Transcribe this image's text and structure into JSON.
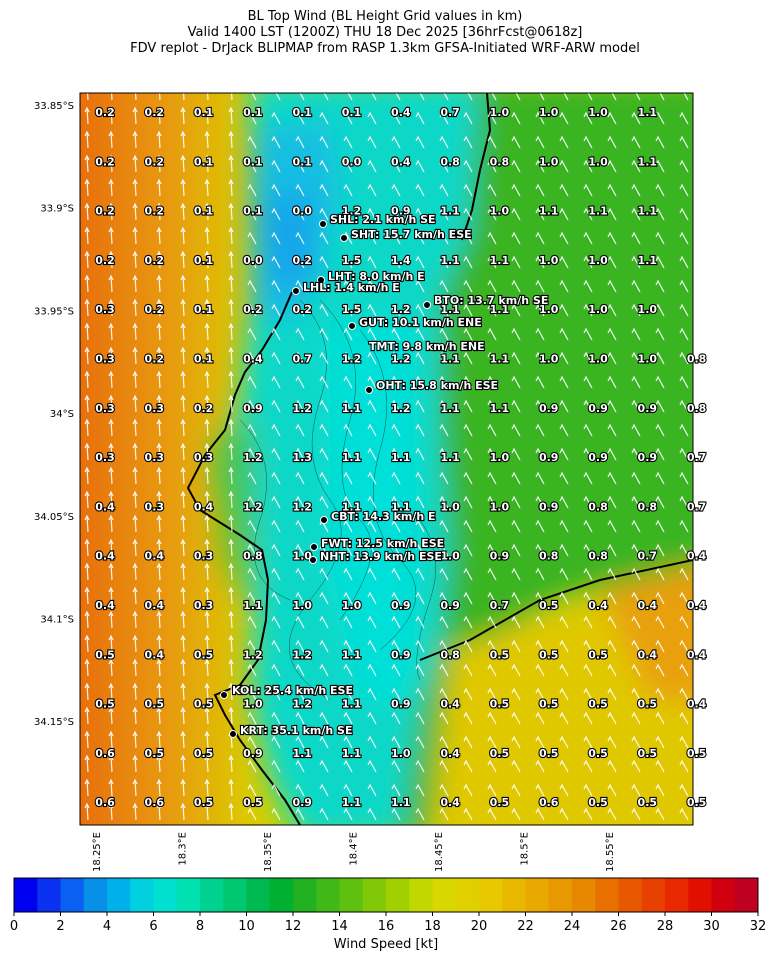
{
  "header": {
    "title_lines": [
      "BL Top Wind (BL Height Grid values in km)",
      "Valid 1400 LST (1200Z) THU 18 Dec 2025 [36hrFcst@0618z]",
      "FDV replot - DrJack BLIPMAP from RASP 1.3km GFSA-Initiated WRF-ARW model"
    ]
  },
  "map": {
    "lat_labels": [
      "33.85°S",
      "33.9°S",
      "33.95°S",
      "34°S",
      "34.05°S",
      "34.1°S",
      "34.15°S"
    ],
    "lon_labels": [
      "18.25°E",
      "18.3°E",
      "18.35°E",
      "18.4°E",
      "18.45°E",
      "18.5°E",
      "18.55°E"
    ],
    "grid_values": [
      [
        "0.2",
        "0.2",
        "0.1",
        "0.1",
        "0.1",
        "0.1",
        "0.4",
        "0.7",
        "1.0",
        "1.0",
        "1.0",
        "1.1",
        null
      ],
      [
        "0.2",
        "0.2",
        "0.1",
        "0.1",
        "0.1",
        "0.0",
        "0.4",
        "0.8",
        "0.8",
        "1.0",
        "1.0",
        "1.1",
        null
      ],
      [
        "0.2",
        "0.2",
        "0.1",
        "0.1",
        "0.0",
        "1.2",
        "0.9",
        "1.1",
        "1.0",
        "1.1",
        "1.1",
        "1.1",
        null
      ],
      [
        "0.2",
        "0.2",
        "0.1",
        "0.0",
        "0.2",
        "1.5",
        "1.4",
        "1.1",
        "1.1",
        "1.0",
        "1.0",
        "1.1",
        null
      ],
      [
        "0.3",
        "0.2",
        "0.1",
        "0.2",
        "0.2",
        "1.5",
        "1.2",
        "1.1",
        "1.1",
        "1.0",
        "1.0",
        "1.0",
        null
      ],
      [
        "0.3",
        "0.2",
        "0.1",
        "0.4",
        "0.7",
        "1.2",
        "1.2",
        "1.1",
        "1.1",
        "1.0",
        "1.0",
        "1.0",
        "0.8"
      ],
      [
        "0.3",
        "0.3",
        "0.2",
        "0.9",
        "1.2",
        "1.1",
        "1.2",
        "1.1",
        "1.1",
        "0.9",
        "0.9",
        "0.9",
        "0.8"
      ],
      [
        "0.3",
        "0.3",
        "0.3",
        "1.2",
        "1.3",
        "1.1",
        "1.1",
        "1.1",
        "1.0",
        "0.9",
        "0.9",
        "0.9",
        "0.7"
      ],
      [
        "0.4",
        "0.3",
        "0.4",
        "1.2",
        "1.2",
        "1.1",
        "1.1",
        "1.0",
        "1.0",
        "0.9",
        "0.8",
        "0.8",
        "0.7"
      ],
      [
        "0.4",
        "0.4",
        "0.3",
        "0.8",
        "1.0",
        null,
        null,
        "1.0",
        "0.9",
        "0.8",
        "0.8",
        "0.7",
        "0.4"
      ],
      [
        "0.4",
        "0.4",
        "0.3",
        "1.1",
        "1.0",
        "1.0",
        "0.9",
        "0.9",
        "0.7",
        "0.5",
        "0.4",
        "0.4",
        "0.4"
      ],
      [
        "0.5",
        "0.4",
        "0.5",
        "1.2",
        "1.2",
        "1.1",
        "0.9",
        "0.8",
        "0.5",
        "0.5",
        "0.5",
        "0.4",
        "0.4"
      ],
      [
        "0.5",
        "0.5",
        "0.5",
        "1.0",
        "1.2",
        "1.1",
        "0.9",
        "0.4",
        "0.5",
        "0.5",
        "0.5",
        "0.5",
        "0.4"
      ],
      [
        "0.6",
        "0.5",
        "0.5",
        "0.9",
        "1.1",
        "1.1",
        "1.0",
        "0.4",
        "0.5",
        "0.5",
        "0.5",
        "0.5",
        "0.5"
      ],
      [
        "0.6",
        "0.6",
        "0.5",
        "0.5",
        "0.9",
        "1.1",
        "1.1",
        "0.4",
        "0.5",
        "0.6",
        "0.5",
        "0.5",
        "0.5"
      ]
    ],
    "stations": [
      "SHL: 2.1 km/h SE",
      "SHT: 15.7 km/h ESE",
      "LHT: 8.0 km/h E",
      "LHL: 1.4 km/h E",
      "BTO: 13.7 km/h SE",
      "GUT: 10.1 km/h ENE",
      "TMT: 9.8 km/h ENE",
      "OHT: 15.8 km/h ESE",
      "CBT: 14.3 km/h E",
      "FWT: 12.5 km/h ESE",
      "NHT: 13.9 km/h ESE",
      "KOL: 25.4 km/h ESE",
      "KRT: 35.1 km/h SE"
    ]
  },
  "colorbar": {
    "label": "Wind Speed [kt]",
    "lim": [
      0,
      32
    ],
    "ticks": [
      0,
      2,
      4,
      6,
      8,
      10,
      12,
      14,
      16,
      18,
      20,
      22,
      24,
      26,
      28,
      30,
      32
    ],
    "colors": [
      "#0000f0",
      "#0a30f0",
      "#0a60f0",
      "#0890e8",
      "#00b0e8",
      "#00d0e0",
      "#00e0d0",
      "#00e0b0",
      "#00d090",
      "#00c870",
      "#00b850",
      "#00b030",
      "#20b020",
      "#40b818",
      "#60c010",
      "#80c808",
      "#a0d000",
      "#c0d800",
      "#d8d800",
      "#e0d000",
      "#e8c800",
      "#e8b800",
      "#e8a800",
      "#e89800",
      "#e88800",
      "#e87000",
      "#e85800",
      "#e84000",
      "#e82800",
      "#e01000",
      "#d00010",
      "#c00020"
    ]
  }
}
